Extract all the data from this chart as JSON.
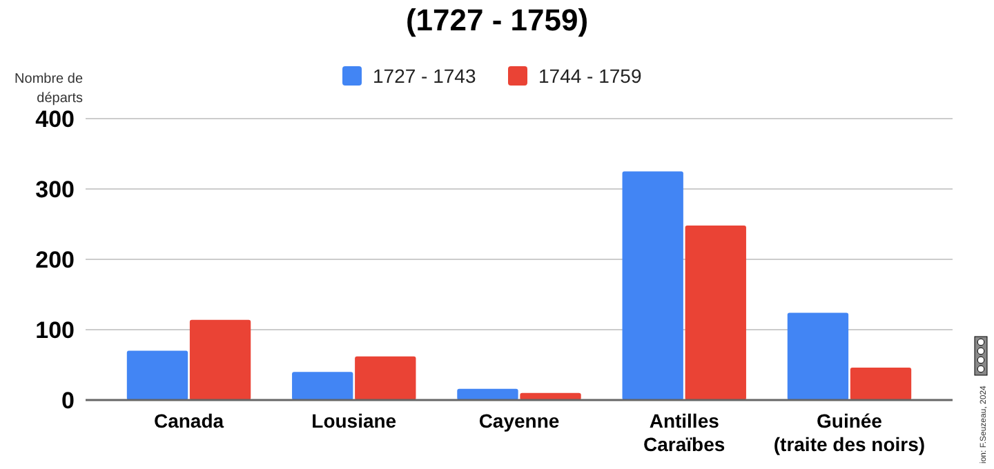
{
  "chart_data": {
    "type": "bar",
    "title": "(1727 - 1759)",
    "ylabel": "Nombre de\ndéparts",
    "categories": [
      "Canada",
      "Lousiane",
      "Cayenne",
      "Antilles\nCaraïbes",
      "Guinée\n(traite des noirs)"
    ],
    "series": [
      {
        "name": "1727 - 1743",
        "color": "#4285f4",
        "values": [
          70,
          40,
          16,
          325,
          124
        ]
      },
      {
        "name": "1744 - 1759",
        "color": "#ea4335",
        "values": [
          114,
          62,
          10,
          248,
          46
        ]
      }
    ],
    "ylim": [
      0,
      400
    ],
    "yticks": [
      0,
      100,
      200,
      300,
      400
    ],
    "grid": "y",
    "legend": "top",
    "annotations": [
      "ion: F.Seuzeau, 2024"
    ]
  }
}
